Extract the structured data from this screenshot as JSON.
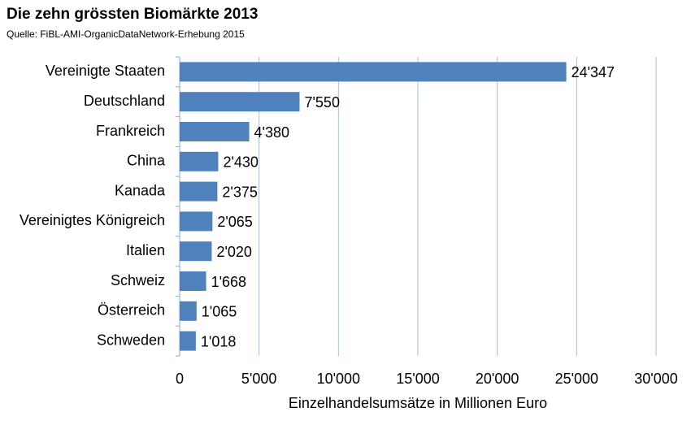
{
  "chart_data": {
    "type": "bar",
    "orientation": "horizontal",
    "title": "Die zehn grössten Biomärkte  2013",
    "subtitle": "Quelle: FiBL-AMI-OrganicDataNetwork-Erhebung 2015",
    "x_label": "Einzelhandelsumsätze in Millionen Euro",
    "categories": [
      "Vereinigte Staaten",
      "Deutschland",
      "Frankreich",
      "China",
      "Kanada",
      "Vereinigtes Königreich",
      "Italien",
      "Schweiz",
      "Österreich",
      "Schweden"
    ],
    "values": [
      24347,
      7550,
      4380,
      2430,
      2375,
      2065,
      2020,
      1668,
      1065,
      1018
    ],
    "value_labels": [
      "24'347",
      "7'550",
      "4'380",
      "2'430",
      "2'375",
      "2'065",
      "2'020",
      "1'668",
      "1'065",
      "1'018"
    ],
    "color": "#4f81bd",
    "xlim": [
      0,
      30000
    ],
    "xticks": [
      0,
      {
        "value": 5000,
        "label": "5'000"
      },
      {
        "value": 10000,
        "label": "10'000"
      },
      {
        "value": 15000,
        "label": "15'000"
      },
      {
        "value": 20000,
        "label": "20'000"
      },
      {
        "value": 25000,
        "label": "25'000"
      },
      {
        "value": 30000,
        "label": "30'000"
      }
    ],
    "grid": true
  }
}
